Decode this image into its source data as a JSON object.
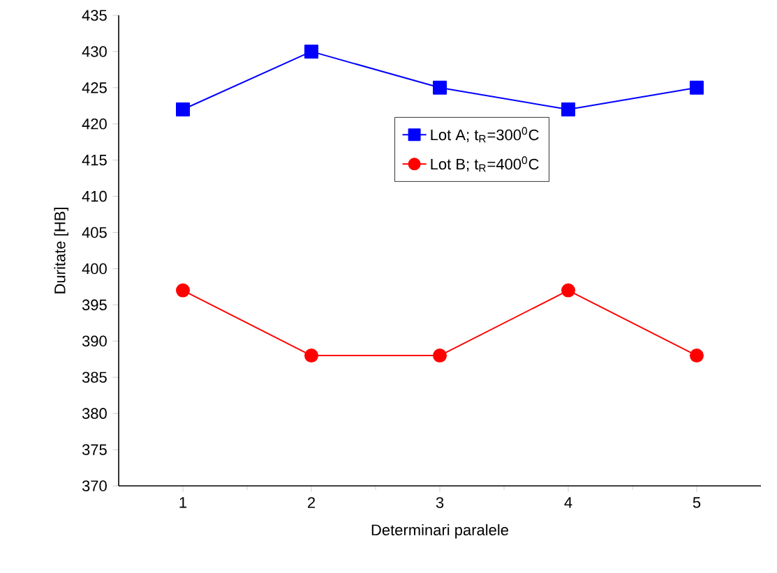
{
  "chart_data": {
    "type": "line",
    "xlabel": "Determinari paralele",
    "ylabel": "Duritate [HB]",
    "x": [
      1,
      2,
      3,
      4,
      5
    ],
    "series": [
      {
        "name": "Lot A; t$_{R}$=300$^{0}$C",
        "color": "#0000ff",
        "marker": "square",
        "values": [
          422,
          430,
          425,
          422,
          425
        ]
      },
      {
        "name": "Lot B; t$_{R}$=400$^{0}$C",
        "color": "#ff0000",
        "marker": "circle",
        "values": [
          397,
          388,
          388,
          397,
          388
        ]
      }
    ],
    "xlim": [
      0.5,
      5.5
    ],
    "xticks": [
      1,
      2,
      3,
      4,
      5
    ],
    "ylim": [
      370,
      435
    ],
    "yticks": [
      370,
      375,
      380,
      385,
      390,
      395,
      400,
      405,
      410,
      415,
      420,
      425,
      430,
      435
    ],
    "grid": false,
    "legend": "top",
    "line_style": "solid"
  }
}
